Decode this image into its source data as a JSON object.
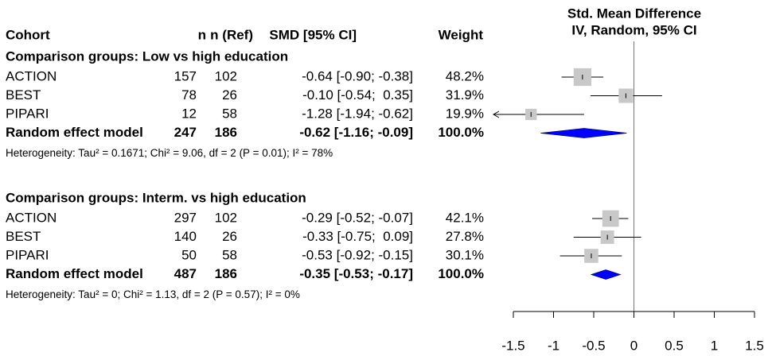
{
  "chart_data": {
    "type": "forest",
    "columns": [
      "Cohort",
      "n",
      "n (Ref)",
      "SMD [95% CI]",
      "Weight"
    ],
    "plot_title": [
      "Std. Mean Difference",
      "IV, Random, 95% CI"
    ],
    "xlim": [
      -1.5,
      1.5
    ],
    "xticks": [
      -1.5,
      -1,
      -0.5,
      0,
      0.5,
      1,
      1.5
    ],
    "reference_line": 0,
    "square_color": "#c8c8c8",
    "diamond_color": "#0000ff",
    "groups": [
      {
        "title": "Comparison groups: Low vs high education",
        "studies": [
          {
            "name": "ACTION",
            "n": 157,
            "n_ref": 102,
            "smd": -0.64,
            "lower": -0.9,
            "upper": -0.38,
            "smd_label": "-0.64 [-0.90; -0.38]",
            "weight": 48.2,
            "weight_label": "48.2%"
          },
          {
            "name": "BEST",
            "n": 78,
            "n_ref": 26,
            "smd": -0.1,
            "lower": -0.54,
            "upper": 0.35,
            "smd_label": "-0.10 [-0.54;  0.35]",
            "weight": 31.9,
            "weight_label": "31.9%"
          },
          {
            "name": "PIPARI",
            "n": 12,
            "n_ref": 58,
            "smd": -1.28,
            "lower": -1.94,
            "upper": -0.62,
            "smd_label": "-1.28 [-1.94; -0.62]",
            "weight": 19.9,
            "weight_label": "19.9%"
          }
        ],
        "pooled": {
          "name": "Random effect model",
          "n": 247,
          "n_ref": 186,
          "smd": -0.62,
          "lower": -1.16,
          "upper": -0.09,
          "smd_label": "-0.62 [-1.16; -0.09]",
          "weight": 100.0,
          "weight_label": "100.0%"
        },
        "heterogeneity": "Heterogeneity: Tau² = 0.1671; Chi² = 9.06, df = 2 (P = 0.01); I² = 78%"
      },
      {
        "title": "Comparison groups: Interm. vs high education",
        "studies": [
          {
            "name": "ACTION",
            "n": 297,
            "n_ref": 102,
            "smd": -0.29,
            "lower": -0.52,
            "upper": -0.07,
            "smd_label": "-0.29 [-0.52; -0.07]",
            "weight": 42.1,
            "weight_label": "42.1%"
          },
          {
            "name": "BEST",
            "n": 140,
            "n_ref": 26,
            "smd": -0.33,
            "lower": -0.75,
            "upper": 0.09,
            "smd_label": "-0.33 [-0.75;  0.09]",
            "weight": 27.8,
            "weight_label": "27.8%"
          },
          {
            "name": "PIPARI",
            "n": 50,
            "n_ref": 58,
            "smd": -0.53,
            "lower": -0.92,
            "upper": -0.15,
            "smd_label": "-0.53 [-0.92; -0.15]",
            "weight": 30.1,
            "weight_label": "30.1%"
          }
        ],
        "pooled": {
          "name": "Random effect model",
          "n": 487,
          "n_ref": 186,
          "smd": -0.35,
          "lower": -0.53,
          "upper": -0.17,
          "smd_label": "-0.35 [-0.53; -0.17]",
          "weight": 100.0,
          "weight_label": "100.0%"
        },
        "heterogeneity": "Heterogeneity: Tau² = 0; Chi² = 1.13, df = 2 (P = 0.57); I² = 0%"
      }
    ]
  }
}
